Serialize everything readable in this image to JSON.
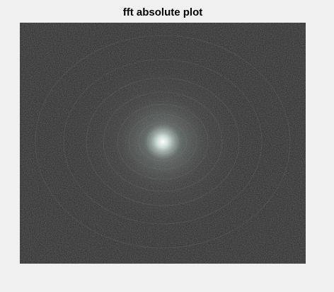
{
  "title": "fft absolute plot"
}
